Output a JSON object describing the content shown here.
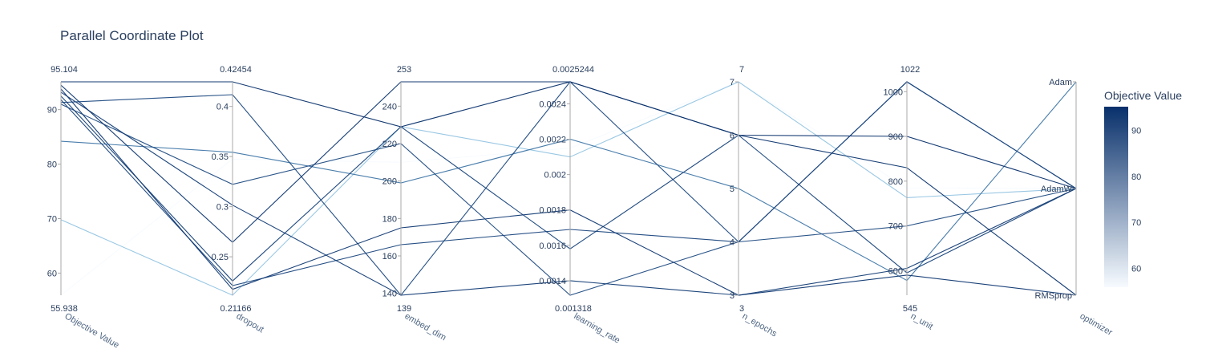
{
  "chart_data": {
    "type": "parallel_coordinates",
    "title": "Parallel Coordinate Plot",
    "colorbar": {
      "title": "Objective Value",
      "ticks": [
        "60",
        "70",
        "80",
        "90"
      ],
      "range": [
        55.938,
        95.104
      ],
      "colors": [
        "#f7fbff",
        "#08306b"
      ]
    },
    "axes": [
      {
        "label": "Objective Value",
        "type": "linear",
        "range": [
          55.938,
          95.104
        ],
        "range_labels": [
          "95.104",
          "55.938"
        ],
        "ticks": [
          60,
          70,
          80,
          90
        ]
      },
      {
        "label": "dropout",
        "type": "linear",
        "range": [
          0.21166,
          0.42454
        ],
        "range_labels": [
          "0.42454",
          "0.21166"
        ],
        "ticks": [
          0.25,
          0.3,
          0.35,
          0.4
        ]
      },
      {
        "label": "embed_dim",
        "type": "linear",
        "range": [
          139,
          253
        ],
        "range_labels": [
          "253",
          "139"
        ],
        "ticks": [
          140,
          160,
          180,
          200,
          220,
          240
        ]
      },
      {
        "label": "learning_rate",
        "type": "linear",
        "range": [
          0.001318,
          0.0025244
        ],
        "range_labels": [
          "0.0025244",
          "0.001318"
        ],
        "ticks": [
          0.0014,
          0.0016,
          0.0018,
          0.002,
          0.0022,
          0.0024
        ]
      },
      {
        "label": "n_epochs",
        "type": "linear",
        "range": [
          3,
          7
        ],
        "range_labels": [
          "7",
          "3"
        ],
        "ticks": [
          3,
          4,
          5,
          6,
          7
        ]
      },
      {
        "label": "n_unit",
        "type": "linear",
        "range": [
          545,
          1022
        ],
        "range_labels": [
          "1022",
          "545"
        ],
        "ticks": [
          600,
          700,
          800,
          900,
          1000
        ]
      },
      {
        "label": "optimizer",
        "type": "categorical",
        "categories": [
          "RMSprop",
          "AdamW",
          "Adam"
        ]
      }
    ],
    "tick_text": {
      "dropout": [
        "0.25",
        "0.3",
        "0.35",
        "0.4"
      ],
      "learning_rate": [
        "0.0014",
        "0.0016",
        "0.0018",
        "0.002",
        "0.0022",
        "0.0024"
      ]
    },
    "trials": [
      {
        "value": 95.104,
        "dropout": 0.42454,
        "embed_dim": 229,
        "learning_rate": 0.0025244,
        "n_epochs": 6,
        "n_unit": 900,
        "optimizer": "AdamW"
      },
      {
        "value": 94.5,
        "dropout": 0.2645,
        "embed_dim": 253,
        "learning_rate": 0.0025244,
        "n_epochs": 6,
        "n_unit": 830,
        "optimizer": "RMSprop"
      },
      {
        "value": 93.8,
        "dropout": 0.2175,
        "embed_dim": 175,
        "learning_rate": 0.0018,
        "n_epochs": 3,
        "n_unit": 590,
        "optimizer": "RMSprop"
      },
      {
        "value": 93.2,
        "dropout": 0.3015,
        "embed_dim": 139,
        "learning_rate": 0.0014,
        "n_epochs": 3,
        "n_unit": 605,
        "optimizer": "AdamW"
      },
      {
        "value": 92.5,
        "dropout": 0.2258,
        "embed_dim": 229,
        "learning_rate": 0.00158,
        "n_epochs": 6,
        "n_unit": 595,
        "optimizer": "AdamW"
      },
      {
        "value": 91.8,
        "dropout": 0.2213,
        "embed_dim": 166,
        "learning_rate": 0.00169,
        "n_epochs": 4,
        "n_unit": 1022,
        "optimizer": "AdamW"
      },
      {
        "value": 91.3,
        "dropout": 0.4117,
        "embed_dim": 139,
        "learning_rate": 0.0025244,
        "n_epochs": 4,
        "n_unit": 1022,
        "optimizer": "AdamW"
      },
      {
        "value": 91.0,
        "dropout": 0.3223,
        "embed_dim": 220,
        "learning_rate": 0.001318,
        "n_epochs": 4,
        "n_unit": 700,
        "optimizer": "AdamW"
      },
      {
        "value": 84.2,
        "dropout": 0.3543,
        "embed_dim": 199,
        "learning_rate": 0.0022,
        "n_epochs": 5,
        "n_unit": 578,
        "optimizer": "Adam"
      },
      {
        "value": 69.8,
        "dropout": 0.21166,
        "embed_dim": 229,
        "learning_rate": 0.0021,
        "n_epochs": 7,
        "n_unit": 763,
        "optimizer": "AdamW"
      },
      {
        "value": 55.938,
        "dropout": 0.3475,
        "embed_dim": 210,
        "learning_rate": 0.00215,
        "n_epochs": 7,
        "n_unit": 785,
        "optimizer": "AdamW"
      }
    ]
  }
}
